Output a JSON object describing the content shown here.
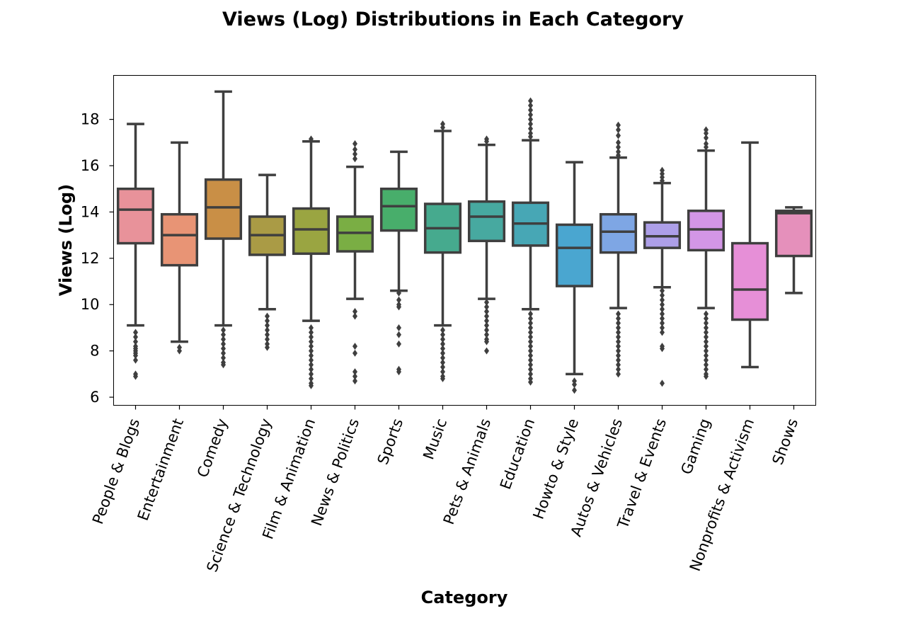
{
  "chart_data": {
    "type": "box",
    "title": "Views (Log) Distributions in Each Category",
    "xlabel": "Category",
    "ylabel": "Views (Log)",
    "ylim": [
      5.65,
      19.9
    ],
    "yticks": [
      6,
      8,
      10,
      12,
      14,
      16,
      18
    ],
    "grid": false,
    "categories": [
      "People & Blogs",
      "Entertainment",
      "Comedy",
      "Science & Technology",
      "Film & Animation",
      "News & Politics",
      "Sports",
      "Music",
      "Pets & Animals",
      "Education",
      "Howto & Style",
      "Autos & Vehicles",
      "Travel & Events",
      "Gaming",
      "Nonprofits & Activism",
      "Shows"
    ],
    "colors": [
      "#e8929a",
      "#e89475",
      "#c98f46",
      "#aa9b45",
      "#9aa541",
      "#7aae44",
      "#48ae6b",
      "#46aa8e",
      "#47a9a0",
      "#47a7b5",
      "#4aa6d0",
      "#7ea6e4",
      "#ad9fe8",
      "#d396e6",
      "#e68fd7",
      "#e590bb"
    ],
    "boxes": [
      {
        "whisker_low": 9.1,
        "q1": 12.65,
        "median": 14.1,
        "q3": 15.0,
        "whisker_high": 17.8,
        "outliers": [
          8.8,
          8.6,
          8.4,
          8.2,
          8.1,
          8.0,
          7.9,
          7.8,
          7.6,
          7.0,
          6.9
        ]
      },
      {
        "whisker_low": 8.4,
        "q1": 11.7,
        "median": 13.0,
        "q3": 13.9,
        "whisker_high": 17.0,
        "outliers": [
          8.15,
          8.0
        ]
      },
      {
        "whisker_low": 9.1,
        "q1": 12.85,
        "median": 14.2,
        "q3": 15.4,
        "whisker_high": 19.2,
        "outliers": [
          8.9,
          8.7,
          8.5,
          8.3,
          8.1,
          7.9,
          7.7,
          7.5,
          7.4
        ]
      },
      {
        "whisker_low": 9.8,
        "q1": 12.15,
        "median": 13.0,
        "q3": 13.8,
        "whisker_high": 15.6,
        "outliers": [
          9.5,
          9.3,
          9.1,
          8.9,
          8.7,
          8.5,
          8.3,
          8.15
        ]
      },
      {
        "whisker_low": 9.3,
        "q1": 12.2,
        "median": 13.25,
        "q3": 14.15,
        "whisker_high": 17.05,
        "outliers": [
          17.15,
          9.0,
          8.8,
          8.6,
          8.4,
          8.2,
          8.0,
          7.8,
          7.6,
          7.4,
          7.2,
          7.0,
          6.8,
          6.6,
          6.5
        ]
      },
      {
        "whisker_low": 10.25,
        "q1": 12.3,
        "median": 13.1,
        "q3": 13.8,
        "whisker_high": 15.95,
        "outliers": [
          16.95,
          16.7,
          16.5,
          16.3,
          9.7,
          9.5,
          8.2,
          7.9,
          7.1,
          6.9,
          6.7
        ]
      },
      {
        "whisker_low": 10.6,
        "q1": 13.2,
        "median": 14.25,
        "q3": 15.0,
        "whisker_high": 16.6,
        "outliers": [
          10.5,
          10.2,
          10.0,
          9.9,
          9.0,
          8.7,
          8.3,
          7.2,
          7.1
        ]
      },
      {
        "whisker_low": 9.1,
        "q1": 12.25,
        "median": 13.3,
        "q3": 14.35,
        "whisker_high": 17.5,
        "outliers": [
          17.8,
          17.65,
          8.9,
          8.7,
          8.5,
          8.3,
          8.1,
          7.9,
          7.7,
          7.5,
          7.3,
          7.1,
          6.9,
          6.8
        ]
      },
      {
        "whisker_low": 10.25,
        "q1": 12.75,
        "median": 13.8,
        "q3": 14.45,
        "whisker_high": 16.9,
        "outliers": [
          17.15,
          17.05,
          10.1,
          9.9,
          9.7,
          9.5,
          9.3,
          9.1,
          8.9,
          8.7,
          8.5,
          8.4,
          8.0
        ]
      },
      {
        "whisker_low": 9.8,
        "q1": 12.55,
        "median": 13.5,
        "q3": 14.4,
        "whisker_high": 17.1,
        "outliers": [
          18.8,
          18.6,
          18.4,
          18.2,
          18.0,
          17.8,
          17.6,
          17.4,
          17.25,
          9.6,
          9.4,
          9.2,
          9.0,
          8.8,
          8.6,
          8.4,
          8.2,
          8.0,
          7.8,
          7.6,
          7.4,
          7.2,
          7.0,
          6.8,
          6.65
        ]
      },
      {
        "whisker_low": 7.0,
        "q1": 10.8,
        "median": 12.45,
        "q3": 13.45,
        "whisker_high": 16.15,
        "outliers": [
          6.7,
          6.55,
          6.3
        ]
      },
      {
        "whisker_low": 9.85,
        "q1": 12.25,
        "median": 13.15,
        "q3": 13.9,
        "whisker_high": 16.35,
        "outliers": [
          17.75,
          17.55,
          17.3,
          17.0,
          16.8,
          16.6,
          16.45,
          9.6,
          9.4,
          9.2,
          9.0,
          8.8,
          8.6,
          8.4,
          8.2,
          8.0,
          7.8,
          7.6,
          7.4,
          7.2,
          7.0
        ]
      },
      {
        "whisker_low": 10.75,
        "q1": 12.45,
        "median": 12.95,
        "q3": 13.55,
        "whisker_high": 15.25,
        "outliers": [
          15.8,
          15.65,
          15.5,
          15.35,
          10.6,
          10.4,
          10.2,
          10.0,
          9.8,
          9.6,
          9.4,
          9.2,
          9.0,
          8.8,
          8.2,
          8.1,
          6.6
        ]
      },
      {
        "whisker_low": 9.85,
        "q1": 12.35,
        "median": 13.25,
        "q3": 14.05,
        "whisker_high": 16.65,
        "outliers": [
          17.55,
          17.4,
          17.2,
          16.95,
          16.8,
          9.6,
          9.4,
          9.2,
          9.0,
          8.8,
          8.6,
          8.4,
          8.2,
          8.0,
          7.8,
          7.6,
          7.4,
          7.2,
          7.0,
          6.9
        ]
      },
      {
        "whisker_low": 7.3,
        "q1": 9.35,
        "median": 10.65,
        "q3": 12.65,
        "whisker_high": 17.0,
        "outliers": []
      },
      {
        "whisker_low": 10.5,
        "q1": 12.1,
        "median": 13.95,
        "q3": 14.05,
        "whisker_high": 14.2,
        "outliers": []
      }
    ]
  }
}
